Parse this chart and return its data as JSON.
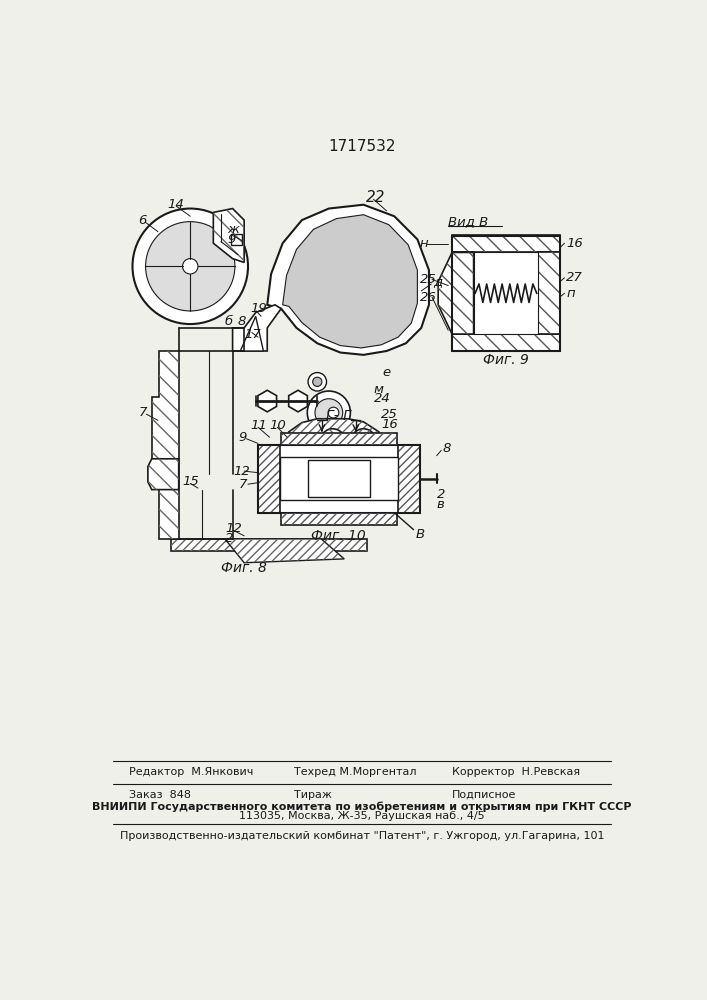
{
  "title": "1717532",
  "bg_color": "#f0f0eb",
  "fig8_caption": "Фиг. 8",
  "fig9_caption": "Фиг. 9",
  "fig10_caption": "Фиг. 10",
  "footer_line1_col1": "Редактор  М.Янкович",
  "footer_line1_col2": "Техред М.Моргентал",
  "footer_line1_col3": "Корректор  Н.Ревская",
  "footer_line2_col1": "Заказ  848",
  "footer_line2_col2": "Тираж",
  "footer_line2_col3": "Подписное",
  "footer_line3": "ВНИИПИ Государственного комитета по изобретениям и открытиям при ГКНТ СССР",
  "footer_line4": "113035, Москва, Ж-35, Раушская наб., 4/5",
  "footer_line5": "Производственно-издательский комбинат \"Патент\", г. Ужгород, ул.Гагарина, 101",
  "view_b_label": "Вид В",
  "line_color": "#1a1a1a",
  "label_fontsize": 9.5,
  "label_fontsize_large": 11,
  "caption_fontsize": 10,
  "footer_fontsize": 8
}
